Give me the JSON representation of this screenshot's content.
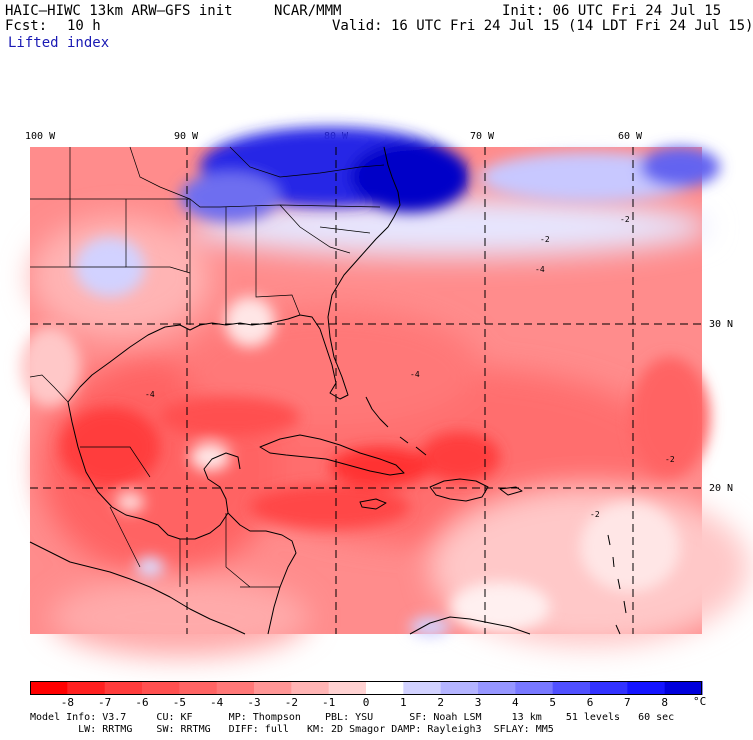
{
  "header": {
    "model": "HAIC–HIWC 13km ARW–GFS init",
    "org": "NCAR/MMM",
    "init": "Init: 06 UTC Fri 24 Jul 15",
    "fcst_label": "Fcst:",
    "fcst_value": "10 h",
    "valid": "Valid: 16 UTC Fri 24 Jul 15 (14 LDT Fri 24 Jul 15)",
    "field": "Lifted index"
  },
  "map": {
    "lon_labels": [
      "100 W",
      "90 W",
      "80 W",
      "70 W",
      "60 W"
    ],
    "lon_values": [
      -100,
      -90,
      -80,
      -70,
      -60
    ],
    "lat_labels": [
      "30 N",
      "20 N"
    ],
    "lat_values": [
      30,
      20
    ],
    "extent": {
      "lon_min": -100,
      "lon_max": -55.5,
      "lat_min": 11.3,
      "lat_max": 36.8
    },
    "colors": {
      "negative": "#f03c3c",
      "positive": "#3232dc",
      "land_line": "#000000"
    }
  },
  "colorbar": {
    "labels": [
      "-8",
      "-7",
      "-6",
      "-5",
      "-4",
      "-3",
      "-2",
      "-1",
      "0",
      "1",
      "2",
      "3",
      "4",
      "5",
      "6",
      "7",
      "8"
    ],
    "unit": "°C",
    "colors": [
      "#ff0000",
      "#ff2020",
      "#ff3c3c",
      "#ff5050",
      "#ff6464",
      "#ff7878",
      "#ff9696",
      "#ffb4b4",
      "#ffd2d2",
      "#ffffff",
      "#d2d2ff",
      "#b4b4ff",
      "#9696ff",
      "#7878ff",
      "#5050ff",
      "#3232ff",
      "#1414ff",
      "#0000dc"
    ]
  },
  "model_info": {
    "line1": "Model Info: V3.7     CU: KF      MP: Thompson    PBL: YSU      SF: Noah LSM     13 km    51 levels   60 sec",
    "line2": "        LW: RRTMG    SW: RRTMG   DIFF: full   KM: 2D Smagor DAMP: Rayleigh3  SFLAY: MM5"
  }
}
